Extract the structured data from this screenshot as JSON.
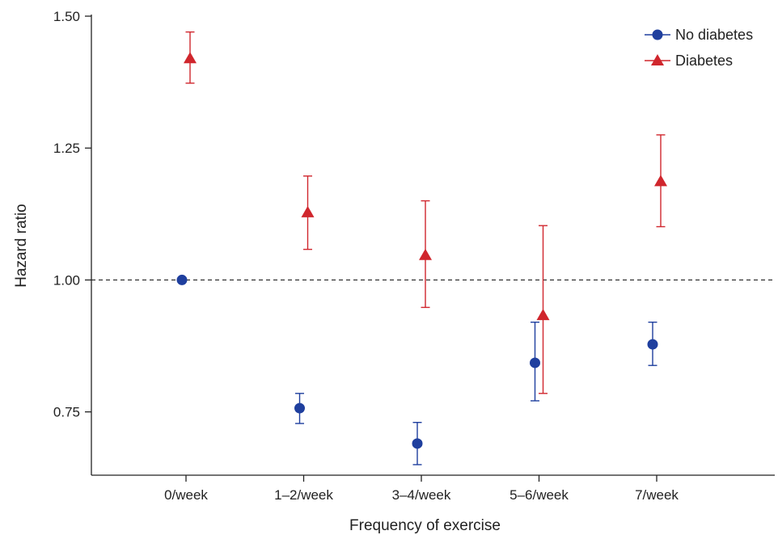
{
  "chart_data": {
    "type": "scatter",
    "xlabel": "Frequency of exercise",
    "ylabel": "Hazard ratio",
    "categories": [
      "0/week",
      "1–2/week",
      "3–4/week",
      "5–6/week",
      "7/week"
    ],
    "yticks": [
      "0.75",
      "1.00",
      "1.25",
      "1.50"
    ],
    "ylim": [
      0.63,
      1.5
    ],
    "reference_line": 1.0,
    "grid": false,
    "legend_position": "top-right",
    "series": [
      {
        "name": "No diabetes",
        "color": "#1f3f9e",
        "marker": "circle",
        "values": [
          1.0,
          0.757,
          0.69,
          0.843,
          0.878
        ],
        "ci_low": [
          null,
          0.728,
          0.65,
          0.771,
          0.838
        ],
        "ci_high": [
          null,
          0.785,
          0.73,
          0.92,
          0.92
        ]
      },
      {
        "name": "Diabetes",
        "color": "#d0262d",
        "marker": "triangle",
        "values": [
          1.42,
          1.128,
          1.047,
          0.933,
          1.187
        ],
        "ci_low": [
          1.373,
          1.058,
          0.948,
          0.785,
          1.101
        ],
        "ci_high": [
          1.47,
          1.197,
          1.15,
          1.103,
          1.275
        ]
      }
    ]
  }
}
